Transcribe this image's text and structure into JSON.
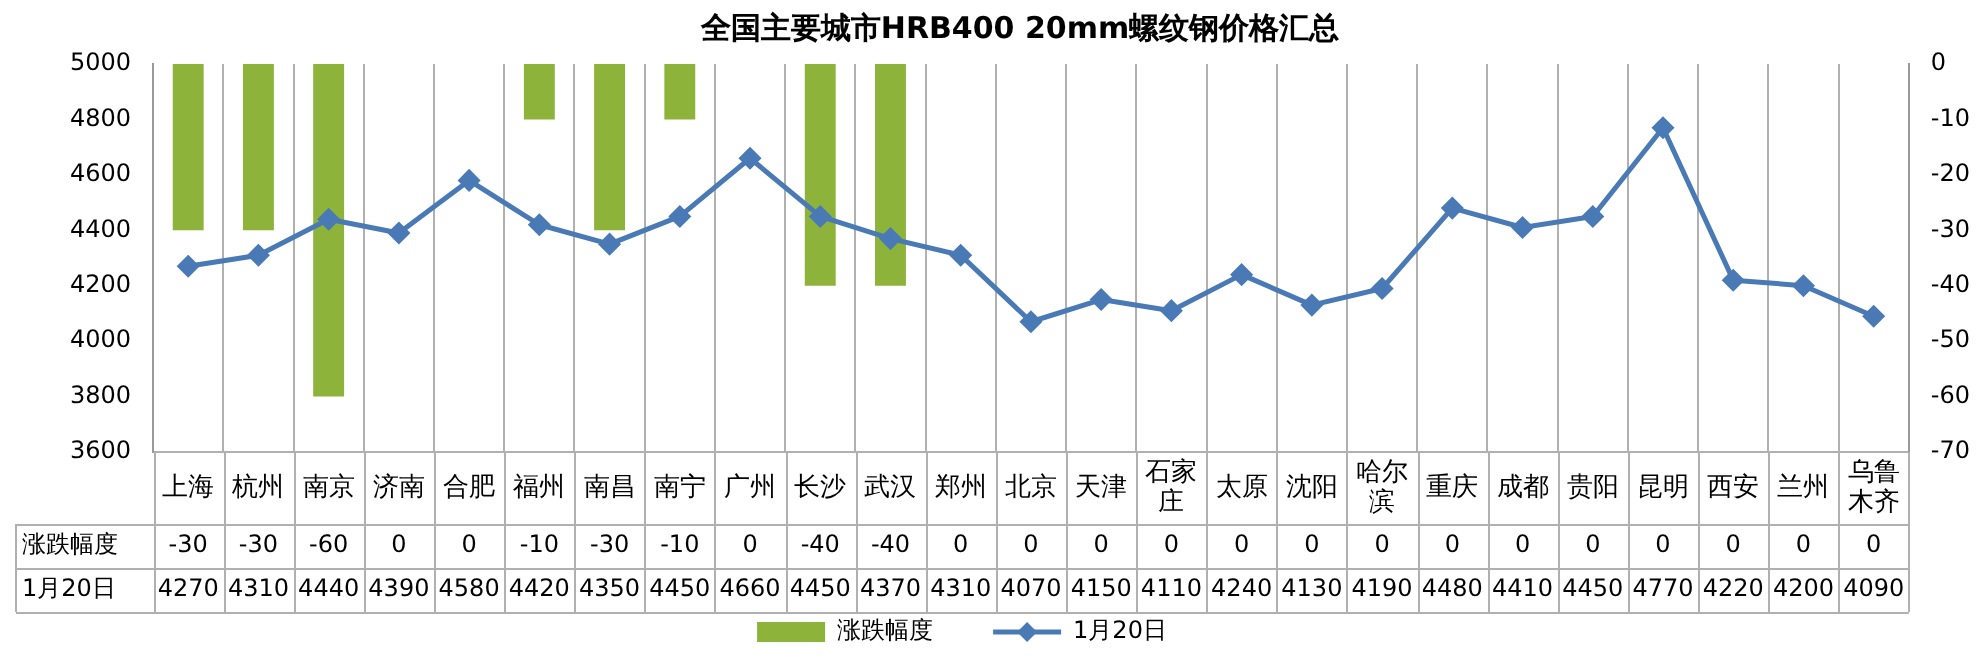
{
  "chart_data": {
    "type": "bar",
    "title": "全国主要城市HRB400 20mm螺纹钢价格汇总",
    "categories": [
      "上海",
      "杭州",
      "南京",
      "济南",
      "合肥",
      "福州",
      "南昌",
      "南宁",
      "广州",
      "长沙",
      "武汉",
      "郑州",
      "北京",
      "天津",
      "石家庄",
      "太原",
      "沈阳",
      "哈尔滨",
      "重庆",
      "成都",
      "贵阳",
      "昆明",
      "西安",
      "兰州",
      "乌鲁木齐"
    ],
    "series": [
      {
        "name": "涨跌幅度",
        "axis": "y2",
        "color": "#8db33a",
        "values": [
          -30,
          -30,
          -60,
          0,
          0,
          -10,
          -30,
          -10,
          0,
          -40,
          -40,
          0,
          0,
          0,
          0,
          0,
          0,
          0,
          0,
          0,
          0,
          0,
          0,
          0,
          0
        ]
      },
      {
        "name": "1月20日",
        "type": "line",
        "color": "#4a7ab5",
        "marker": "diamond",
        "values": [
          4270,
          4310,
          4440,
          4390,
          4580,
          4420,
          4350,
          4450,
          4660,
          4450,
          4370,
          4310,
          4070,
          4150,
          4110,
          4240,
          4130,
          4190,
          4480,
          4410,
          4450,
          4770,
          4220,
          4200,
          4090
        ]
      }
    ],
    "ylim": [
      3600,
      5000
    ],
    "yticks": [
      3600,
      3800,
      4000,
      4200,
      4400,
      4600,
      4800,
      5000
    ],
    "y2lim": [
      -70,
      0
    ],
    "y2ticks": [
      -70,
      -60,
      -50,
      -40,
      -30,
      -20,
      -10,
      0
    ],
    "grid": "x",
    "legend": "bottom",
    "data_labels": true
  }
}
